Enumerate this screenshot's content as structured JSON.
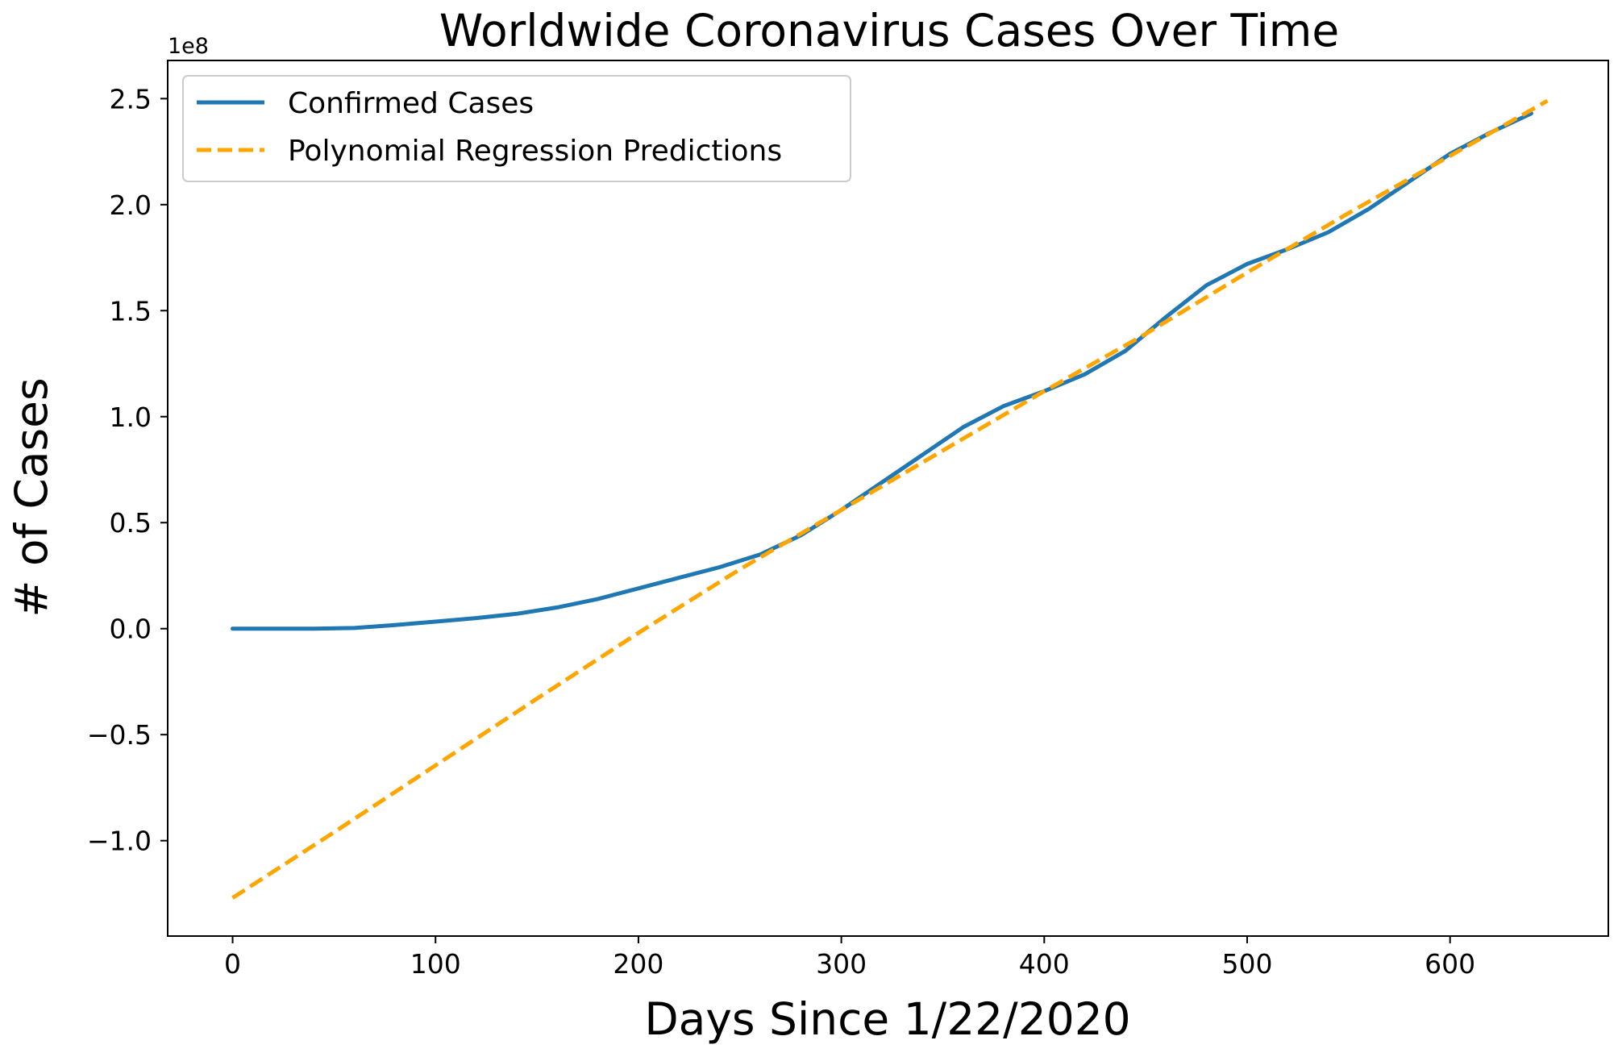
{
  "chart_data": {
    "type": "line",
    "title": "Worldwide Coronavirus Cases Over Time",
    "xlabel": "Days Since 1/22/2020",
    "ylabel": "# of Cases",
    "y_offset_label": "1e8",
    "xlim": [
      -32,
      678
    ],
    "ylim": [
      -1.45,
      2.68
    ],
    "xticks": [
      {
        "value": 0,
        "label": "0"
      },
      {
        "value": 100,
        "label": "100"
      },
      {
        "value": 200,
        "label": "200"
      },
      {
        "value": 300,
        "label": "300"
      },
      {
        "value": 400,
        "label": "400"
      },
      {
        "value": 500,
        "label": "500"
      },
      {
        "value": 600,
        "label": "600"
      }
    ],
    "yticks": [
      {
        "value": -1.0,
        "label": "−1.0"
      },
      {
        "value": -0.5,
        "label": "−0.5"
      },
      {
        "value": 0.0,
        "label": "0.0"
      },
      {
        "value": 0.5,
        "label": "0.5"
      },
      {
        "value": 1.0,
        "label": "1.0"
      },
      {
        "value": 1.5,
        "label": "1.5"
      },
      {
        "value": 2.0,
        "label": "2.0"
      },
      {
        "value": 2.5,
        "label": "2.5"
      }
    ],
    "grid": false,
    "legend_position": "top-left",
    "series": [
      {
        "name": "Confirmed Cases",
        "style": "solid",
        "color": "#1f77b4",
        "x": [
          0,
          40,
          60,
          80,
          100,
          120,
          140,
          160,
          180,
          200,
          220,
          240,
          260,
          280,
          300,
          320,
          340,
          360,
          380,
          400,
          420,
          440,
          460,
          480,
          500,
          520,
          540,
          560,
          580,
          600,
          620,
          640
        ],
        "y": [
          0.0,
          0.0,
          0.003,
          0.017,
          0.033,
          0.05,
          0.07,
          0.1,
          0.14,
          0.19,
          0.24,
          0.29,
          0.35,
          0.44,
          0.56,
          0.69,
          0.82,
          0.95,
          1.05,
          1.12,
          1.2,
          1.31,
          1.47,
          1.62,
          1.72,
          1.79,
          1.87,
          1.98,
          2.11,
          2.24,
          2.34,
          2.43
        ]
      },
      {
        "name": "Polynomial Regression Predictions",
        "style": "dashed",
        "color": "#ffa500",
        "x": [
          0,
          50,
          100,
          150,
          200,
          250,
          300,
          350,
          400,
          450,
          500,
          550,
          600,
          648
        ],
        "y": [
          -1.27,
          -0.96,
          -0.645,
          -0.33,
          -0.02,
          0.28,
          0.56,
          0.84,
          1.12,
          1.39,
          1.68,
          1.96,
          2.23,
          2.49
        ]
      }
    ]
  }
}
